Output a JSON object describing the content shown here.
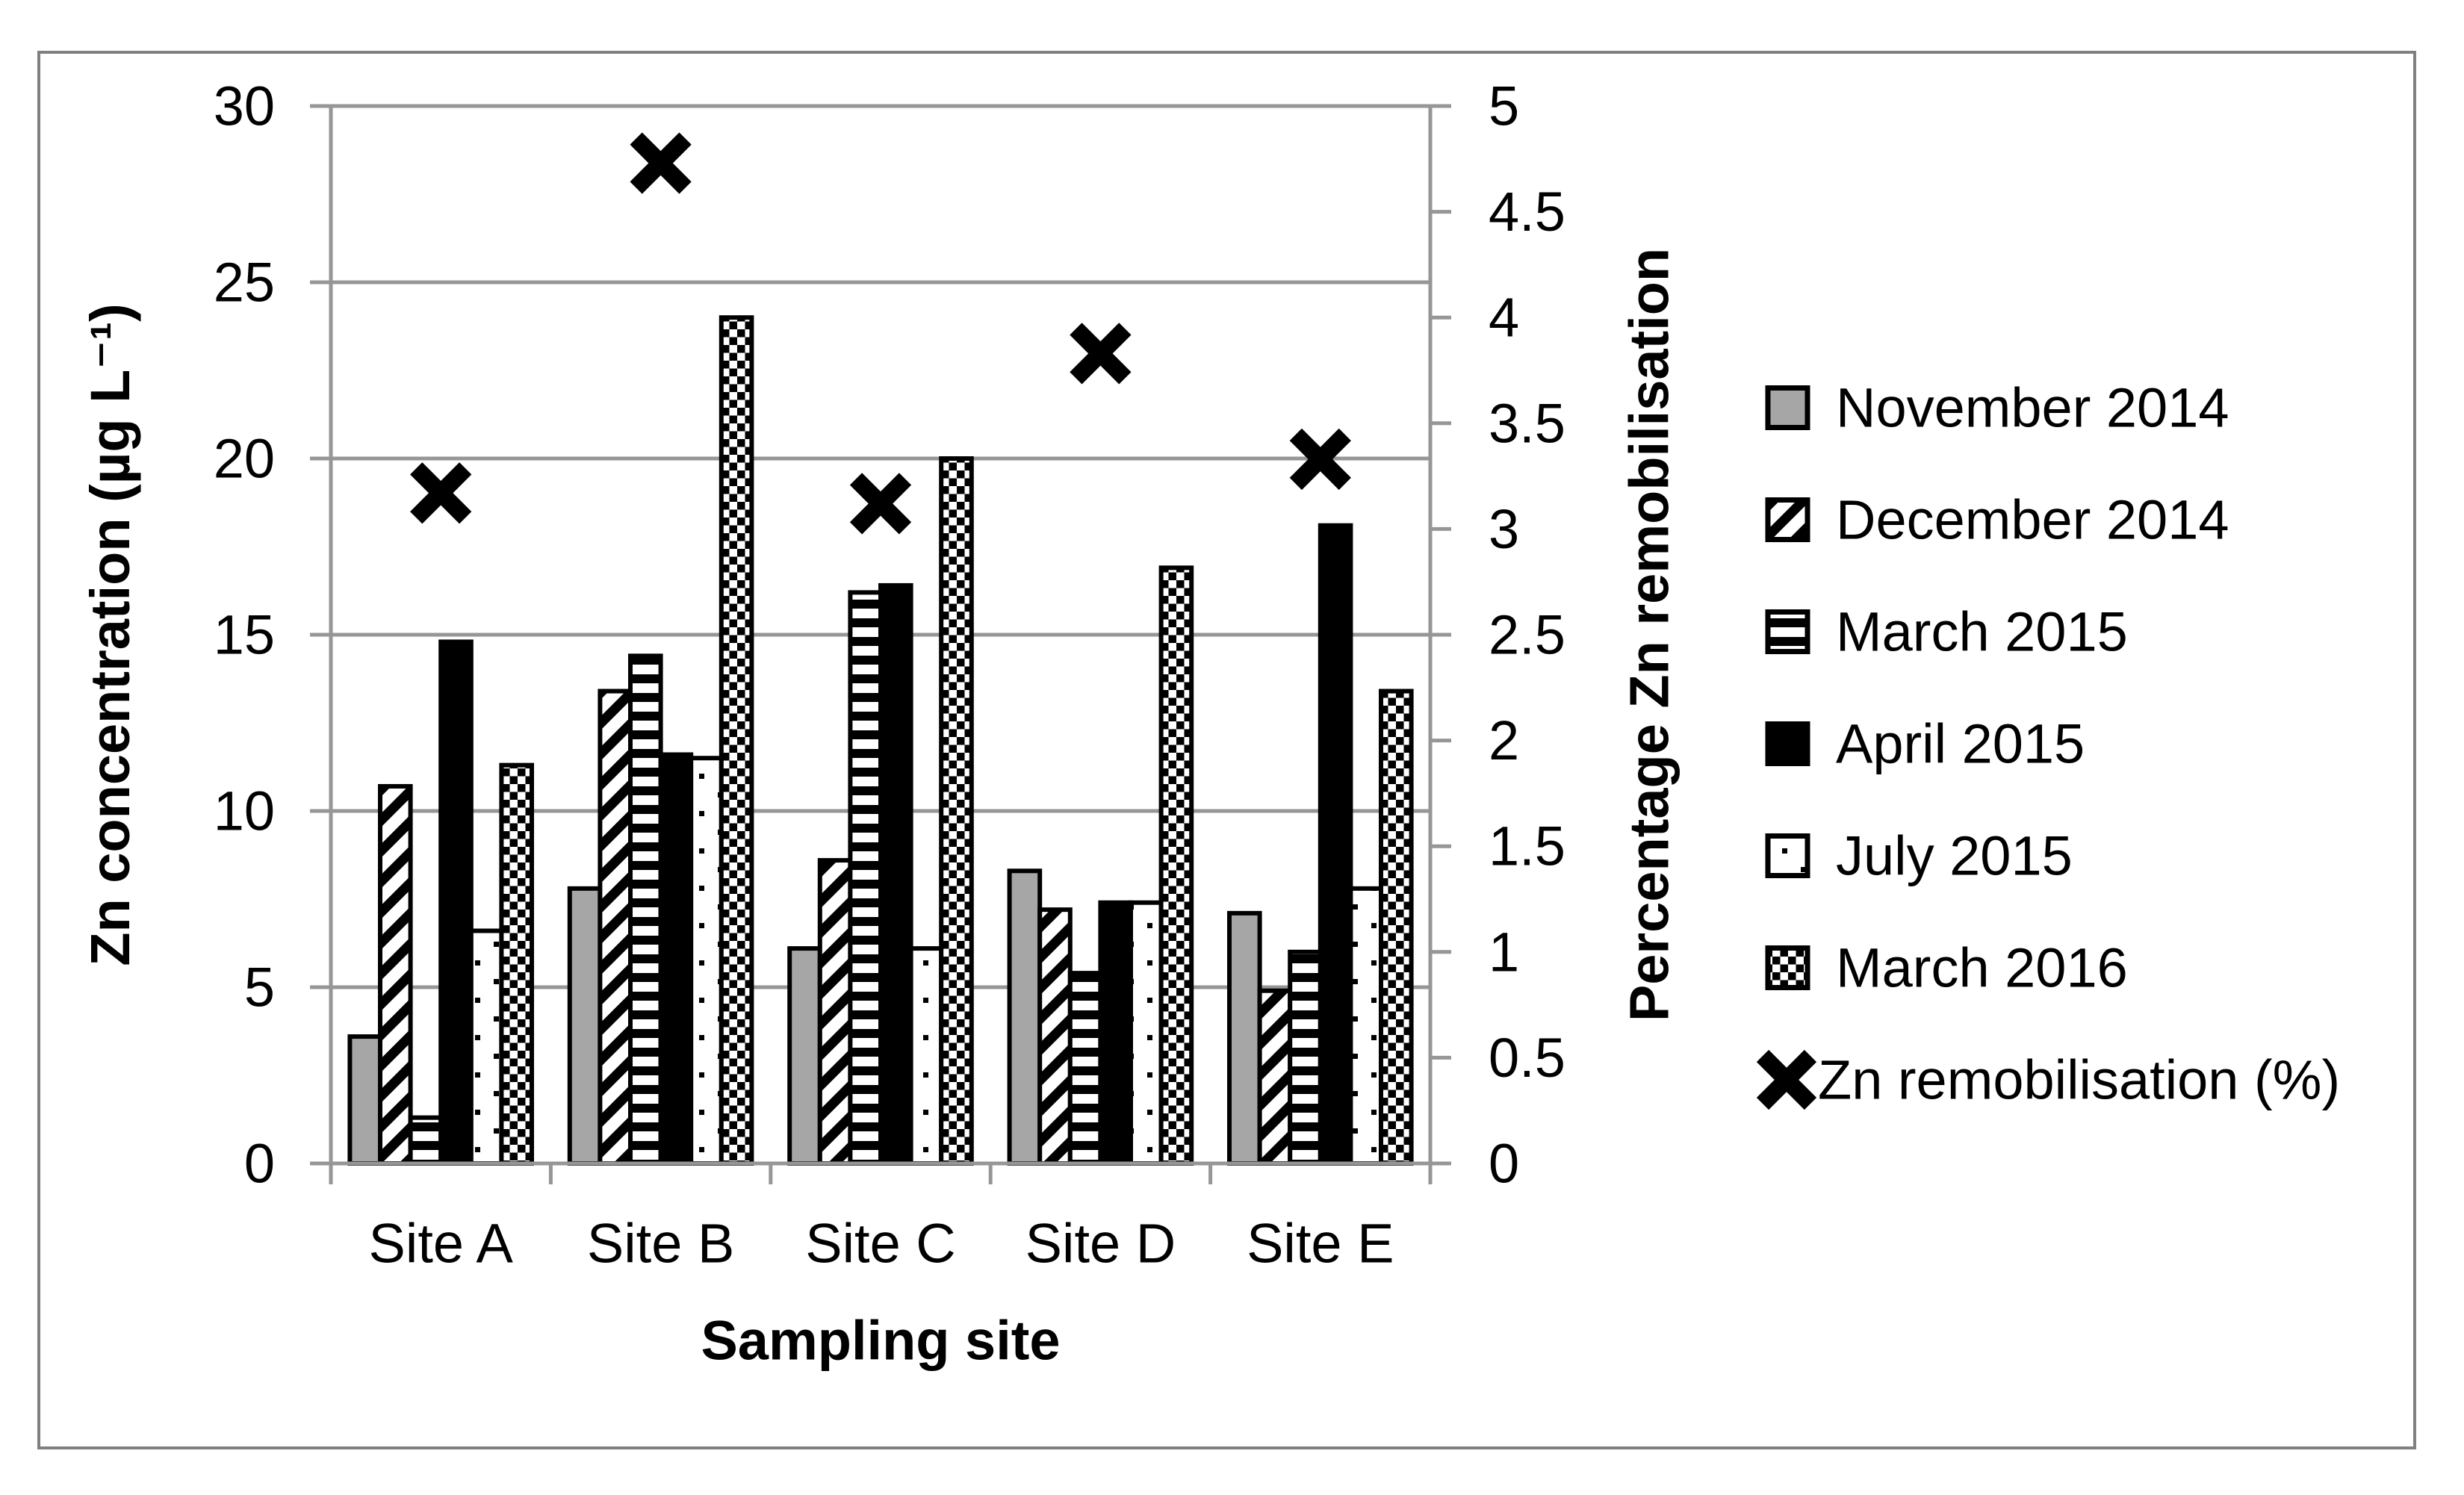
{
  "figure": {
    "background": "#ffffff",
    "frame_color": "#808080"
  },
  "chart_data": {
    "type": "bar",
    "subtype": "clustered-bar-with-scatter-overlay",
    "categories": [
      "Site A",
      "Site B",
      "Site C",
      "Site D",
      "Site E"
    ],
    "x_axis": {
      "title": "Sampling site"
    },
    "left_axis": {
      "title": "Zn concentration (µg L⁻¹)",
      "min": 0,
      "max": 30,
      "step": 5,
      "tick_labels": [
        "30",
        "25",
        "20",
        "15",
        "10",
        "5",
        "0"
      ]
    },
    "right_axis": {
      "title": "Percentage Zn remobilisation",
      "min": 0,
      "max": 5,
      "step": 0.5,
      "tick_labels": [
        "5",
        "4.5",
        "4",
        "3.5",
        "3",
        "2.5",
        "2",
        "1.5",
        "1",
        "0.5",
        "0"
      ]
    },
    "series": [
      {
        "name": "November 2014",
        "type": "bar",
        "axis": "left",
        "pattern": "solid-gray",
        "values": [
          3.6,
          7.8,
          6.1,
          8.3,
          7.1
        ]
      },
      {
        "name": "December 2014",
        "type": "bar",
        "axis": "left",
        "pattern": "diagonal-stripes",
        "values": [
          10.7,
          13.4,
          8.6,
          7.2,
          4.9
        ]
      },
      {
        "name": "March 2015",
        "type": "bar",
        "axis": "left",
        "pattern": "horizontal-stripes",
        "values": [
          1.3,
          14.4,
          16.2,
          5.4,
          6.0
        ]
      },
      {
        "name": "April 2015",
        "type": "bar",
        "axis": "left",
        "pattern": "solid-black",
        "values": [
          14.8,
          11.6,
          16.4,
          7.4,
          18.1
        ]
      },
      {
        "name": "July 2015",
        "type": "bar",
        "axis": "left",
        "pattern": "sparse-dots",
        "values": [
          6.6,
          11.5,
          6.1,
          7.4,
          7.8
        ]
      },
      {
        "name": "March 2016",
        "type": "bar",
        "axis": "left",
        "pattern": "checker",
        "values": [
          11.3,
          24.0,
          20.0,
          16.9,
          13.4
        ]
      },
      {
        "name": "Zn remobilisation (%)",
        "type": "scatter-x",
        "axis": "right",
        "values": [
          3.17,
          4.73,
          3.12,
          3.83,
          3.33
        ]
      }
    ],
    "legend_position": "right",
    "grid": "horizontal-major-only",
    "colors": {
      "bar_gray": "#a6a6a6",
      "bar_black": "#000000",
      "gridline": "#969696",
      "axis_line": "#969696",
      "marker": "#000000"
    }
  }
}
